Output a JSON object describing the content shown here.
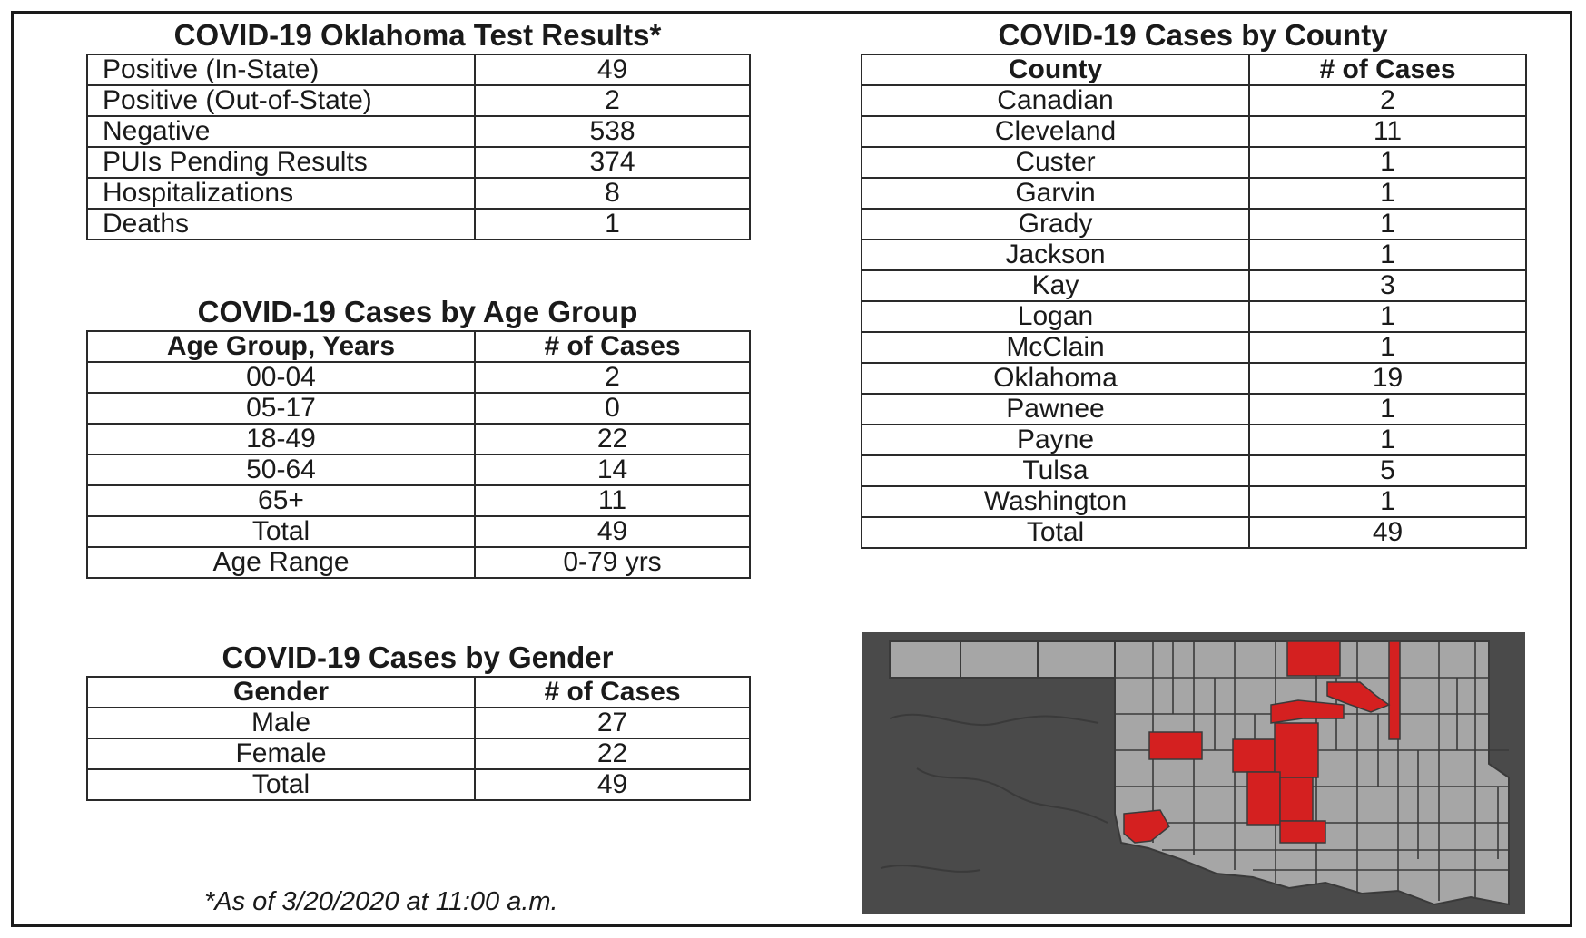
{
  "test_results": {
    "title": "COVID-19 Oklahoma Test Results*",
    "rows": [
      {
        "label": "Positive (In-State)",
        "value": "49"
      },
      {
        "label": "Positive (Out-of-State)",
        "value": "2"
      },
      {
        "label": "Negative",
        "value": "538"
      },
      {
        "label": "PUIs Pending Results",
        "value": "374"
      },
      {
        "label": "Hospitalizations",
        "value": "8"
      },
      {
        "label": "Deaths",
        "value": "1"
      }
    ]
  },
  "age_group": {
    "title": "COVID-19 Cases by Age Group",
    "headers": [
      "Age Group, Years",
      "# of Cases"
    ],
    "rows": [
      {
        "label": "00-04",
        "value": "2"
      },
      {
        "label": "05-17",
        "value": "0"
      },
      {
        "label": "18-49",
        "value": "22"
      },
      {
        "label": "50-64",
        "value": "14"
      },
      {
        "label": "65+",
        "value": "11"
      },
      {
        "label": "Total",
        "value": "49"
      },
      {
        "label": "Age Range",
        "value": "0-79 yrs"
      }
    ]
  },
  "gender": {
    "title": "COVID-19 Cases by Gender",
    "headers": [
      "Gender",
      "# of Cases"
    ],
    "rows": [
      {
        "label": "Male",
        "value": "27"
      },
      {
        "label": "Female",
        "value": "22"
      },
      {
        "label": "Total",
        "value": "49"
      }
    ]
  },
  "county": {
    "title": "COVID-19 Cases by County",
    "headers": [
      "County",
      "# of Cases"
    ],
    "rows": [
      {
        "label": "Canadian",
        "value": "2"
      },
      {
        "label": "Cleveland",
        "value": "11"
      },
      {
        "label": "Custer",
        "value": "1"
      },
      {
        "label": "Garvin",
        "value": "1"
      },
      {
        "label": "Grady",
        "value": "1"
      },
      {
        "label": "Jackson",
        "value": "1"
      },
      {
        "label": "Kay",
        "value": "3"
      },
      {
        "label": "Logan",
        "value": "1"
      },
      {
        "label": "McClain",
        "value": "1"
      },
      {
        "label": "Oklahoma",
        "value": "19"
      },
      {
        "label": "Pawnee",
        "value": "1"
      },
      {
        "label": "Payne",
        "value": "1"
      },
      {
        "label": "Tulsa",
        "value": "5"
      },
      {
        "label": "Washington",
        "value": "1"
      },
      {
        "label": "Total",
        "value": "49"
      }
    ]
  },
  "footnote": "*As of 3/20/2020 at 11:00 a.m.",
  "map": {
    "icon": "oklahoma-county-map",
    "colors": {
      "affected": "#d42020",
      "county": "#a6a6a6",
      "background": "#4a4a4a",
      "border": "#3a3a3a"
    }
  }
}
